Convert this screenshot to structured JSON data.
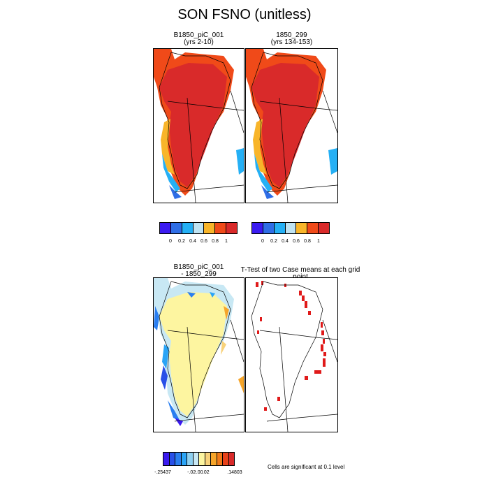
{
  "title": "SON FSNO (unitless)",
  "panels": {
    "case1": {
      "name": "B1850_piC_001",
      "years": "(yrs 2-10)"
    },
    "case2": {
      "name": "1850_299",
      "years": "(yrs 134-153)"
    },
    "diff": {
      "line1": "B1850_piC_001",
      "line2": "- 1850_299"
    },
    "ttest": {
      "title": "T-Test of two Case means at each grid point"
    }
  },
  "colorbar_abs": {
    "colors": [
      "#3b1bf0",
      "#2f6ee6",
      "#25b0f5",
      "#bfe3f2",
      "#f8b52a",
      "#f04a19",
      "#d92a2a"
    ],
    "ticks": [
      "0",
      "0.2",
      "0.4",
      "0.6",
      "0.8",
      "1"
    ]
  },
  "colorbar_diff": {
    "colors": [
      "#3b1bf0",
      "#2850e8",
      "#2a7ef0",
      "#2aa4f6",
      "#8fd0f0",
      "#c8e8f4",
      "#fdf5a0",
      "#f8d27a",
      "#f6a52a",
      "#f07a1a",
      "#e8421a",
      "#d92a2a"
    ],
    "ticks": [
      "-.25437",
      "-.02",
      "-.00",
      ".02",
      ".14803"
    ]
  },
  "significance_note": "Cells are significant at 0.1 level",
  "chart_data": [
    {
      "type": "heatmap",
      "title": "B1850_piC_001 (yrs 2-10)",
      "variable": "FSNO",
      "season": "SON",
      "levels": [
        0,
        0.2,
        0.4,
        0.6,
        0.8,
        1
      ]
    },
    {
      "type": "heatmap",
      "title": "1850_299 (yrs 134-153)",
      "variable": "FSNO",
      "season": "SON",
      "levels": [
        0,
        0.2,
        0.4,
        0.6,
        0.8,
        1
      ]
    },
    {
      "type": "heatmap",
      "title": "B1850_piC_001 - 1850_299",
      "variable": "FSNO",
      "season": "SON",
      "min": -0.25437,
      "max": 0.14803,
      "levels": [
        -0.02,
        -0.0,
        0.02
      ]
    },
    {
      "type": "heatmap",
      "title": "T-Test of two Case means at each grid point",
      "note": "Cells are significant at 0.1 level"
    }
  ]
}
